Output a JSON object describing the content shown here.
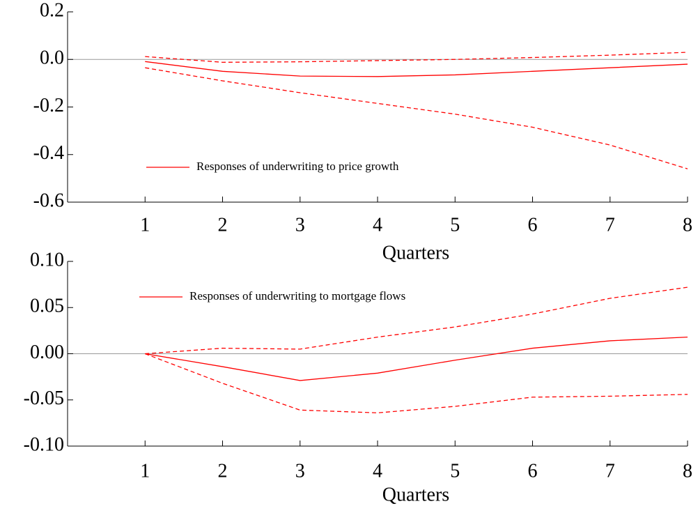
{
  "chart_data": [
    {
      "type": "line",
      "x_label": "Quarters",
      "legend": "lower-left",
      "x": [
        1,
        2,
        3,
        4,
        5,
        6,
        7,
        8
      ],
      "xlim": [
        0,
        8
      ],
      "xticks": [
        1,
        2,
        3,
        4,
        5,
        6,
        7,
        8
      ],
      "ylim": [
        -0.6,
        0.2
      ],
      "yticks": [
        0.2,
        {
          "value": 0,
          "label": "0.0"
        },
        -0.2,
        -0.4,
        -0.6
      ],
      "series": [
        {
          "name": "Responses of underwriting to price growth",
          "color": "#ff0000",
          "style": "solid",
          "values": [
            -0.009,
            -0.05,
            -0.07,
            -0.072,
            -0.065,
            -0.05,
            -0.035,
            -0.02
          ]
        },
        {
          "color": "#ff0000",
          "style": "dashed",
          "values": [
            0.012,
            -0.012,
            -0.01,
            -0.005,
            0.0,
            0.008,
            0.018,
            0.03
          ]
        },
        {
          "color": "#ff0000",
          "style": "dashed",
          "values": [
            -0.035,
            -0.09,
            -0.14,
            -0.185,
            -0.23,
            -0.285,
            -0.36,
            -0.46
          ]
        }
      ]
    },
    {
      "type": "line",
      "x_label": "Quarters",
      "legend": "upper-left",
      "x": [
        1,
        2,
        3,
        4,
        5,
        6,
        7,
        8
      ],
      "xlim": [
        0,
        8
      ],
      "xticks": [
        1,
        2,
        3,
        4,
        5,
        6,
        7,
        8
      ],
      "ylim": [
        -0.1,
        0.1
      ],
      "yticks": [
        {
          "value": 0.1,
          "label": "0.10"
        },
        0.05,
        {
          "value": 0,
          "label": "0.00"
        },
        -0.05,
        {
          "value": -0.1,
          "label": "-0.10"
        }
      ],
      "series": [
        {
          "name": "Responses of underwriting to mortgage flows",
          "color": "#ff0000",
          "style": "solid",
          "values": [
            0,
            -0.014,
            -0.029,
            -0.021,
            -0.007,
            0.006,
            0.014,
            0.018
          ]
        },
        {
          "color": "#ff0000",
          "style": "dashed",
          "values": [
            0,
            0.006,
            0.005,
            0.018,
            0.029,
            0.043,
            0.06,
            0.072
          ]
        },
        {
          "color": "#ff0000",
          "style": "dashed",
          "values": [
            0,
            -0.032,
            -0.061,
            -0.064,
            -0.057,
            -0.047,
            -0.046,
            -0.044
          ]
        }
      ]
    }
  ]
}
